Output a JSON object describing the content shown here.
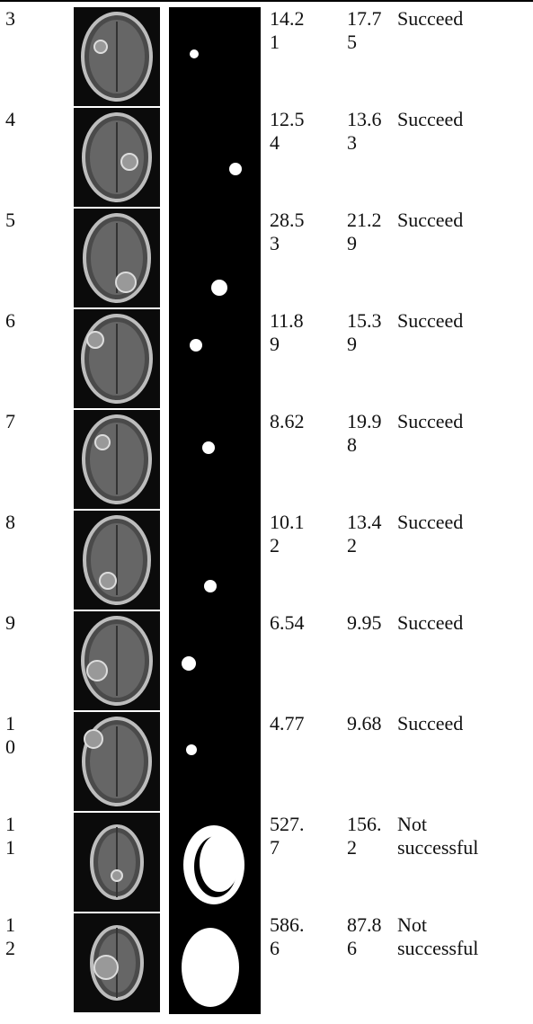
{
  "table": {
    "rows": [
      {
        "number": 3,
        "value1": 14.21,
        "value2": 17.75,
        "status": "Succeed"
      },
      {
        "number": 4,
        "value1": 12.54,
        "value2": 13.63,
        "status": "Succeed"
      },
      {
        "number": 5,
        "value1": 28.53,
        "value2": 21.29,
        "status": "Succeed"
      },
      {
        "number": 6,
        "value1": 11.89,
        "value2": 15.39,
        "status": "Succeed"
      },
      {
        "number": 7,
        "value1": 8.62,
        "value2": 19.98,
        "status": "Succeed"
      },
      {
        "number": 8,
        "value1": 10.12,
        "value2": 13.42,
        "status": "Succeed"
      },
      {
        "number": 9,
        "value1": 6.54,
        "value2": 9.95,
        "status": "Succeed"
      },
      {
        "number": 10,
        "value1": 4.77,
        "value2": 9.68,
        "status": "Succeed"
      },
      {
        "number": 11,
        "value1": 527.7,
        "value2": 156.2,
        "status": "Not successful"
      },
      {
        "number": 12,
        "value1": 586.6,
        "value2": 87.86,
        "status": "Not successful"
      }
    ]
  }
}
